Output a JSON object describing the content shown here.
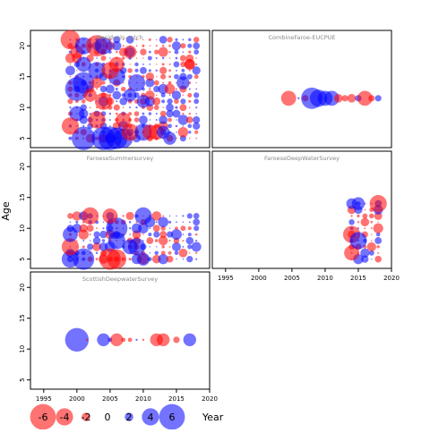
{
  "chart_data": {
    "type": "scatter",
    "ylabel": "Age",
    "xlabel": "Year",
    "xlim": [
      1993,
      2020
    ],
    "ylim": [
      3.5,
      22.5
    ],
    "x_ticks": [
      1995,
      2000,
      2005,
      2010,
      2015,
      2020
    ],
    "y_ticks": [
      5,
      10,
      15,
      20
    ],
    "colors": {
      "positive": "#0000ff",
      "negative": "#ff0000"
    },
    "legend": {
      "placement": "bottom",
      "title": "Year",
      "values": [
        -6,
        -4,
        -2,
        0,
        2,
        4,
        6
      ],
      "labels": [
        "-6",
        "-4",
        "-2",
        "0",
        "2",
        "4",
        "6"
      ]
    },
    "panels": [
      {
        "id": "residuals",
        "title": "Residuals-catch",
        "x_tick_labels": false,
        "grid": {
          "years": [
            1999,
            2000,
            2001,
            2002,
            2003,
            2004,
            2005,
            2006,
            2007,
            2008,
            2009,
            2010,
            2011,
            2012,
            2013,
            2014,
            2015,
            2016,
            2017,
            2018
          ],
          "ages": [
            5,
            6,
            7,
            8,
            9,
            10,
            11,
            12,
            13,
            14,
            15,
            16,
            17,
            18,
            19,
            20,
            21
          ]
        },
        "seed": 7,
        "points": [
          {
            "x": 1999,
            "y": 21,
            "r": -4.5
          },
          {
            "x": 2000,
            "y": 19,
            "r": -3
          },
          {
            "x": 2001,
            "y": 20,
            "r": 4
          },
          {
            "x": 2000,
            "y": 13,
            "r": 5.5
          },
          {
            "x": 2001,
            "y": 14,
            "r": 5
          },
          {
            "x": 2001,
            "y": 17,
            "r": 3.5
          },
          {
            "x": 2001,
            "y": 5,
            "r": 5.5
          },
          {
            "x": 2000,
            "y": 9,
            "r": 3.5
          },
          {
            "x": 1999,
            "y": 7,
            "r": -4
          },
          {
            "x": 2003,
            "y": 20,
            "r": -5
          },
          {
            "x": 2004,
            "y": 20,
            "r": 4
          },
          {
            "x": 2003,
            "y": 16,
            "r": 4
          },
          {
            "x": 2004,
            "y": 5,
            "r": 5.5
          },
          {
            "x": 2005,
            "y": 5,
            "r": 5.5
          },
          {
            "x": 2006,
            "y": 5,
            "r": 5
          },
          {
            "x": 2007,
            "y": 5,
            "r": 4.5
          },
          {
            "x": 2003,
            "y": 8,
            "r": -4
          },
          {
            "x": 2004,
            "y": 11,
            "r": -4
          },
          {
            "x": 2006,
            "y": 15,
            "r": 4
          },
          {
            "x": 2005,
            "y": 16,
            "r": -4
          },
          {
            "x": 2006,
            "y": 17,
            "r": -3.5
          },
          {
            "x": 2008,
            "y": 19,
            "r": -3
          },
          {
            "x": 2009,
            "y": 14,
            "r": 4
          },
          {
            "x": 2008,
            "y": 12,
            "r": 3
          },
          {
            "x": 2010,
            "y": 11,
            "r": 3
          },
          {
            "x": 2007,
            "y": 8,
            "r": -3.5
          },
          {
            "x": 2008,
            "y": 6,
            "r": -4
          },
          {
            "x": 2010,
            "y": 6,
            "r": 4
          },
          {
            "x": 2011,
            "y": 6,
            "r": -3.5
          },
          {
            "x": 2012,
            "y": 6,
            "r": -3.5
          },
          {
            "x": 2013,
            "y": 6,
            "r": 3
          },
          {
            "x": 2014,
            "y": 5,
            "r": 3
          },
          {
            "x": 2016,
            "y": 14,
            "r": 3
          },
          {
            "x": 2017,
            "y": 17,
            "r": -2.5
          },
          {
            "x": 2002,
            "y": 12,
            "r": -3
          },
          {
            "x": 2003,
            "y": 14,
            "r": -2.5
          }
        ]
      },
      {
        "id": "combine",
        "title": "CombineFaroe-EUCPUE",
        "x_tick_labels": false,
        "points": [
          {
            "x": 2004.5,
            "y": 11.5,
            "r": -3.5
          },
          {
            "x": 2006,
            "y": 11.5,
            "r": 0.5
          },
          {
            "x": 2007,
            "y": 11.5,
            "r": -1.5
          },
          {
            "x": 2008,
            "y": 11.5,
            "r": 5
          },
          {
            "x": 2009,
            "y": 11.5,
            "r": 4
          },
          {
            "x": 2010,
            "y": 11.5,
            "r": 3.5
          },
          {
            "x": 2011,
            "y": 11.5,
            "r": 3.5
          },
          {
            "x": 2012,
            "y": 11.5,
            "r": -2
          },
          {
            "x": 2013,
            "y": 11.5,
            "r": -1.5
          },
          {
            "x": 2014,
            "y": 11.5,
            "r": -2
          },
          {
            "x": 2015,
            "y": 11.5,
            "r": 1.5
          },
          {
            "x": 2016,
            "y": 11.5,
            "r": -3.5
          },
          {
            "x": 2017,
            "y": 11.5,
            "r": -1.5
          },
          {
            "x": 2018,
            "y": 11.5,
            "r": 1.5
          }
        ]
      },
      {
        "id": "summer",
        "title": "FaroeseSummersurvey",
        "x_tick_labels": false,
        "grid": {
          "years": [
            1999,
            2000,
            2001,
            2002,
            2003,
            2004,
            2005,
            2006,
            2007,
            2008,
            2009,
            2010,
            2011,
            2012,
            2013,
            2014,
            2015,
            2016,
            2017,
            2018
          ],
          "ages": [
            5,
            6,
            7,
            8,
            9,
            10,
            11,
            12
          ]
        },
        "seed": 13,
        "points": [
          {
            "x": 1999,
            "y": 5,
            "r": 4
          },
          {
            "x": 2001,
            "y": 5,
            "r": 5
          },
          {
            "x": 1999,
            "y": 7,
            "r": -4
          },
          {
            "x": 1999,
            "y": 9,
            "r": 3.5
          },
          {
            "x": 2002,
            "y": 12,
            "r": -4
          },
          {
            "x": 2005,
            "y": 5,
            "r": -5
          },
          {
            "x": 2006,
            "y": 5,
            "r": -4.5
          },
          {
            "x": 2006,
            "y": 10,
            "r": 5
          },
          {
            "x": 2006,
            "y": 8,
            "r": 4
          },
          {
            "x": 2009,
            "y": 7,
            "r": 4
          },
          {
            "x": 2010,
            "y": 12,
            "r": 4
          },
          {
            "x": 2010,
            "y": 5,
            "r": 3
          },
          {
            "x": 2005,
            "y": 12,
            "r": -3.5
          },
          {
            "x": 2008,
            "y": 7,
            "r": 3.5
          }
        ]
      },
      {
        "id": "deepwater",
        "title": "FaroeseDeepWaterSurvey",
        "x_tick_labels": true,
        "grid": {
          "years": [
            2014,
            2015,
            2016,
            2017,
            2018
          ],
          "ages": [
            5,
            6,
            7,
            8,
            9,
            10,
            11,
            12,
            13,
            14
          ]
        },
        "seed": 21,
        "points": [
          {
            "x": 2018,
            "y": 14,
            "r": -4
          },
          {
            "x": 2014,
            "y": 9,
            "r": -4
          },
          {
            "x": 2014,
            "y": 6,
            "r": -3.5
          },
          {
            "x": 2015,
            "y": 8,
            "r": 4
          },
          {
            "x": 2015,
            "y": 14,
            "r": 3
          }
        ]
      },
      {
        "id": "scottish",
        "title": "ScottishDeepwaterSurvey",
        "x_tick_labels": true,
        "points": [
          {
            "x": 2000,
            "y": 11.5,
            "r": 5.5
          },
          {
            "x": 2001.5,
            "y": 11.5,
            "r": -0.5
          },
          {
            "x": 2004,
            "y": 11.5,
            "r": 3
          },
          {
            "x": 2005,
            "y": 11.5,
            "r": 1
          },
          {
            "x": 2006,
            "y": 11.5,
            "r": -3
          },
          {
            "x": 2007,
            "y": 11.5,
            "r": -1
          },
          {
            "x": 2008,
            "y": 11.5,
            "r": -1
          },
          {
            "x": 2009,
            "y": 11.5,
            "r": 0.5
          },
          {
            "x": 2010,
            "y": 11.5,
            "r": -0.5
          },
          {
            "x": 2012,
            "y": 11.5,
            "r": -3
          },
          {
            "x": 2013,
            "y": 11.5,
            "r": -3
          },
          {
            "x": 2015,
            "y": 11.5,
            "r": -1.5
          },
          {
            "x": 2017,
            "y": 11.5,
            "r": 3
          }
        ]
      }
    ]
  }
}
